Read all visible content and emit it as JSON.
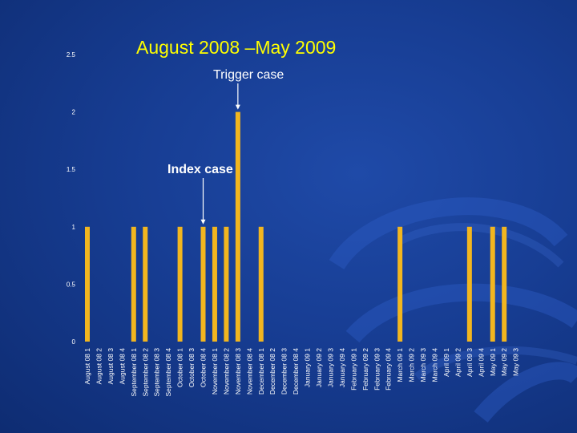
{
  "slide": {
    "title": "August 2008 –May 2009",
    "background_color": "#173d93",
    "title_color": "#ffff00"
  },
  "chart_data": {
    "type": "bar",
    "title": "",
    "xlabel": "",
    "ylabel": "",
    "ylim": [
      0,
      2.5
    ],
    "yticks": [
      "0",
      "0.5",
      "1",
      "1.5",
      "2",
      "2.5"
    ],
    "grid": false,
    "bar_color": "#f2b61f",
    "categories": [
      "August 08 1",
      "August 08 2",
      "August 08 3",
      "August 08 4",
      "September 08 1",
      "September 08 2",
      "September 08 3",
      "September 08 4",
      "October 08 1",
      "October 08 3",
      "October 08 4",
      "November 08 1",
      "November 08 2",
      "November 08 3",
      "November 08 4",
      "December 08 1",
      "December 08 2",
      "December 08 3",
      "December 08 4",
      "January 09 1",
      "January 09 2",
      "January 09 3",
      "January 09 4",
      "February 09 1",
      "February 09 2",
      "February 09 3",
      "February 09 4",
      "March 09 1",
      "March 09 2",
      "March 09 3",
      "March 09 4",
      "April 09 1",
      "April 09 2",
      "April 09 3",
      "April 09 4",
      "May 09 1",
      "May 09 2",
      "May 09 3"
    ],
    "values": [
      1,
      0,
      0,
      0,
      1,
      1,
      0,
      0,
      1,
      0,
      1,
      1,
      1,
      2,
      0,
      1,
      0,
      0,
      0,
      0,
      0,
      0,
      0,
      0,
      0,
      0,
      0,
      1,
      0,
      0,
      0,
      0,
      0,
      1,
      0,
      1,
      1,
      0
    ],
    "annotations": [
      {
        "text": "Trigger case",
        "category": "November 08 3"
      },
      {
        "text": "Index case",
        "category": "October 08 4"
      }
    ]
  }
}
